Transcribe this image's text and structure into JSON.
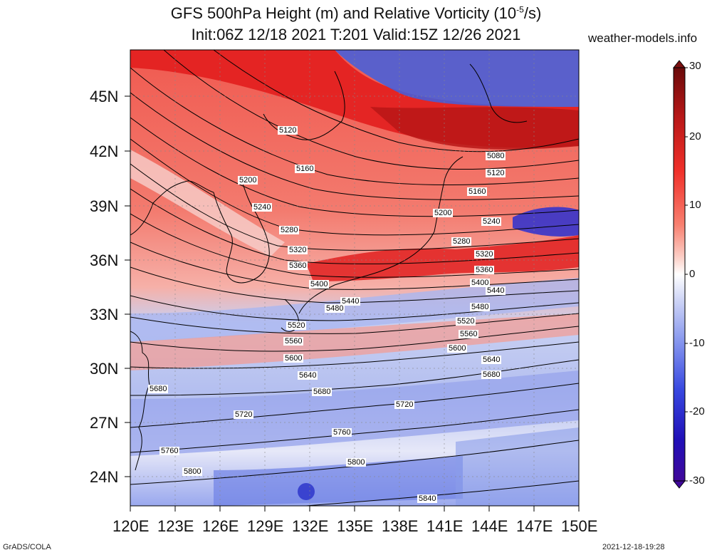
{
  "header": {
    "title_line1": "GFS 500hPa Height (m) and Relative Vorticity (10",
    "title_line1_sup": "-5",
    "title_line1_end": "/s)",
    "title_line2": "Init:06Z 12/18 2021 T:201 Valid:15Z 12/26 2021",
    "site": "weather-models.info"
  },
  "footer": {
    "left": "GrADS/COLA",
    "right": "2021-12-18-19:28"
  },
  "map": {
    "lat_labels": [
      "45N",
      "42N",
      "39N",
      "36N",
      "33N",
      "30N",
      "27N",
      "24N"
    ],
    "lon_labels": [
      "120E",
      "123E",
      "126E",
      "129E",
      "132E",
      "135E",
      "138E",
      "141E",
      "144E",
      "147E",
      "150E"
    ],
    "contour_labels": [
      "5080",
      "5120",
      "5120",
      "5160",
      "5160",
      "5200",
      "5200",
      "5240",
      "5240",
      "5280",
      "5280",
      "5320",
      "5320",
      "5360",
      "5360",
      "5400",
      "5400",
      "5440",
      "5440",
      "5480",
      "5480",
      "5520",
      "5520",
      "5560",
      "5560",
      "5600",
      "5600",
      "5640",
      "5640",
      "5680",
      "5680",
      "5680",
      "5720",
      "5720",
      "5760",
      "5760",
      "5800",
      "5800",
      "5840"
    ]
  },
  "colorbar": {
    "labels": [
      "30",
      "20",
      "10",
      "0",
      "-10",
      "-20",
      "-30"
    ],
    "colors": [
      "#5a0a0a",
      "#a31515",
      "#d42020",
      "#f0302a",
      "#f86a5c",
      "#fbb0a6",
      "#ffffff",
      "#c9d0f5",
      "#8c9cf0",
      "#4a5de8",
      "#2a25c8",
      "#3a0aa0"
    ]
  }
}
